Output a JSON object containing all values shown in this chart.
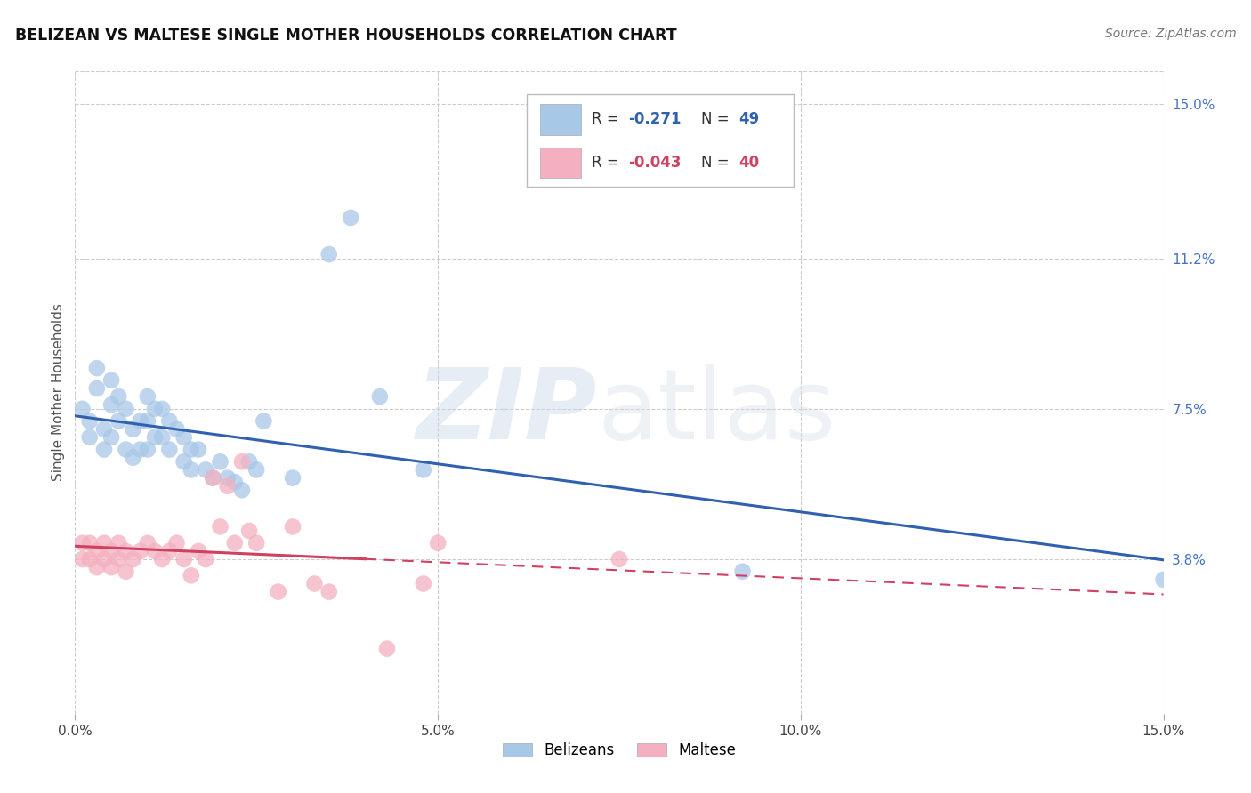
{
  "title": "BELIZEAN VS MALTESE SINGLE MOTHER HOUSEHOLDS CORRELATION CHART",
  "source": "Source: ZipAtlas.com",
  "ylabel": "Single Mother Households",
  "xlim": [
    0.0,
    0.15
  ],
  "ylim": [
    0.0,
    0.158
  ],
  "xtick_vals": [
    0.0,
    0.05,
    0.1,
    0.15
  ],
  "xtick_labels": [
    "0.0%",
    "5.0%",
    "10.0%",
    "15.0%"
  ],
  "ytick_vals_right": [
    0.038,
    0.075,
    0.112,
    0.15
  ],
  "ytick_labels_right": [
    "3.8%",
    "7.5%",
    "11.2%",
    "15.0%"
  ],
  "grid_color": "#cccccc",
  "background_color": "#ffffff",
  "belizean_color": "#a8c8e8",
  "maltese_color": "#f4b0c0",
  "belizean_line_color": "#3060b0",
  "maltese_line_color": "#d04060",
  "legend_R_belize": "-0.271",
  "legend_N_belize": "49",
  "legend_R_maltese": "-0.043",
  "legend_N_maltese": "40",
  "belizean_x": [
    0.001,
    0.002,
    0.002,
    0.003,
    0.003,
    0.004,
    0.004,
    0.005,
    0.005,
    0.005,
    0.006,
    0.006,
    0.007,
    0.007,
    0.008,
    0.008,
    0.009,
    0.009,
    0.01,
    0.01,
    0.01,
    0.011,
    0.011,
    0.012,
    0.012,
    0.013,
    0.013,
    0.014,
    0.015,
    0.015,
    0.016,
    0.016,
    0.017,
    0.018,
    0.019,
    0.02,
    0.021,
    0.022,
    0.023,
    0.024,
    0.025,
    0.026,
    0.03,
    0.035,
    0.038,
    0.042,
    0.048,
    0.092,
    0.15
  ],
  "belizean_y": [
    0.075,
    0.072,
    0.068,
    0.085,
    0.08,
    0.07,
    0.065,
    0.082,
    0.076,
    0.068,
    0.078,
    0.072,
    0.075,
    0.065,
    0.07,
    0.063,
    0.072,
    0.065,
    0.078,
    0.072,
    0.065,
    0.075,
    0.068,
    0.075,
    0.068,
    0.072,
    0.065,
    0.07,
    0.068,
    0.062,
    0.065,
    0.06,
    0.065,
    0.06,
    0.058,
    0.062,
    0.058,
    0.057,
    0.055,
    0.062,
    0.06,
    0.072,
    0.058,
    0.113,
    0.122,
    0.078,
    0.06,
    0.035,
    0.033
  ],
  "maltese_x": [
    0.001,
    0.001,
    0.002,
    0.002,
    0.003,
    0.003,
    0.004,
    0.004,
    0.005,
    0.005,
    0.006,
    0.006,
    0.007,
    0.007,
    0.008,
    0.009,
    0.01,
    0.011,
    0.012,
    0.013,
    0.014,
    0.015,
    0.016,
    0.017,
    0.018,
    0.019,
    0.02,
    0.021,
    0.022,
    0.023,
    0.024,
    0.025,
    0.028,
    0.03,
    0.033,
    0.035,
    0.043,
    0.048,
    0.05,
    0.075
  ],
  "maltese_y": [
    0.042,
    0.038,
    0.042,
    0.038,
    0.04,
    0.036,
    0.042,
    0.038,
    0.04,
    0.036,
    0.042,
    0.038,
    0.04,
    0.035,
    0.038,
    0.04,
    0.042,
    0.04,
    0.038,
    0.04,
    0.042,
    0.038,
    0.034,
    0.04,
    0.038,
    0.058,
    0.046,
    0.056,
    0.042,
    0.062,
    0.045,
    0.042,
    0.03,
    0.046,
    0.032,
    0.03,
    0.016,
    0.032,
    0.042,
    0.038
  ]
}
